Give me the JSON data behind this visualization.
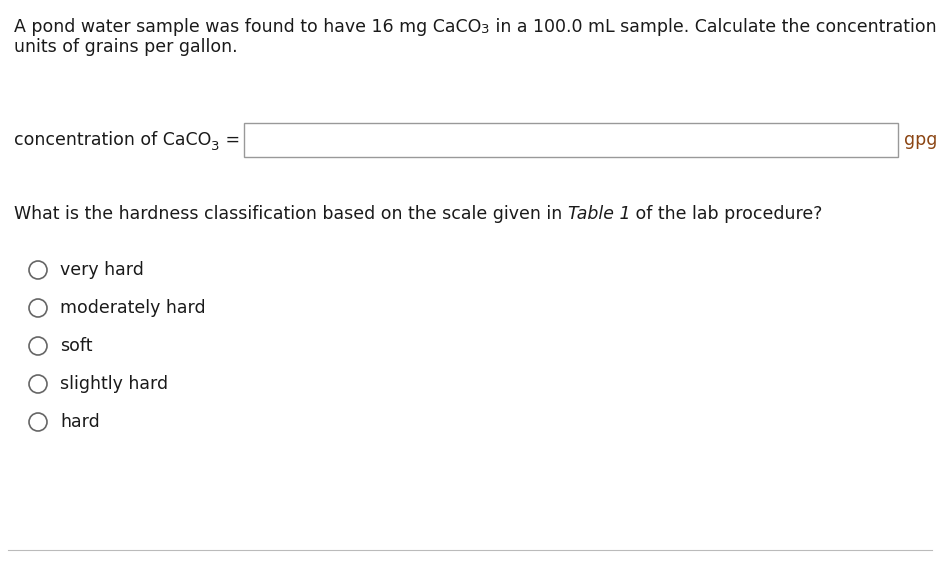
{
  "background_color": "#ffffff",
  "text_color": "#1a1a1a",
  "brown_color": "#8B4513",
  "font_size": 12.5,
  "font_size_small": 9.5,
  "choices": [
    "very hard",
    "moderately hard",
    "soft",
    "slightly hard",
    "hard"
  ]
}
